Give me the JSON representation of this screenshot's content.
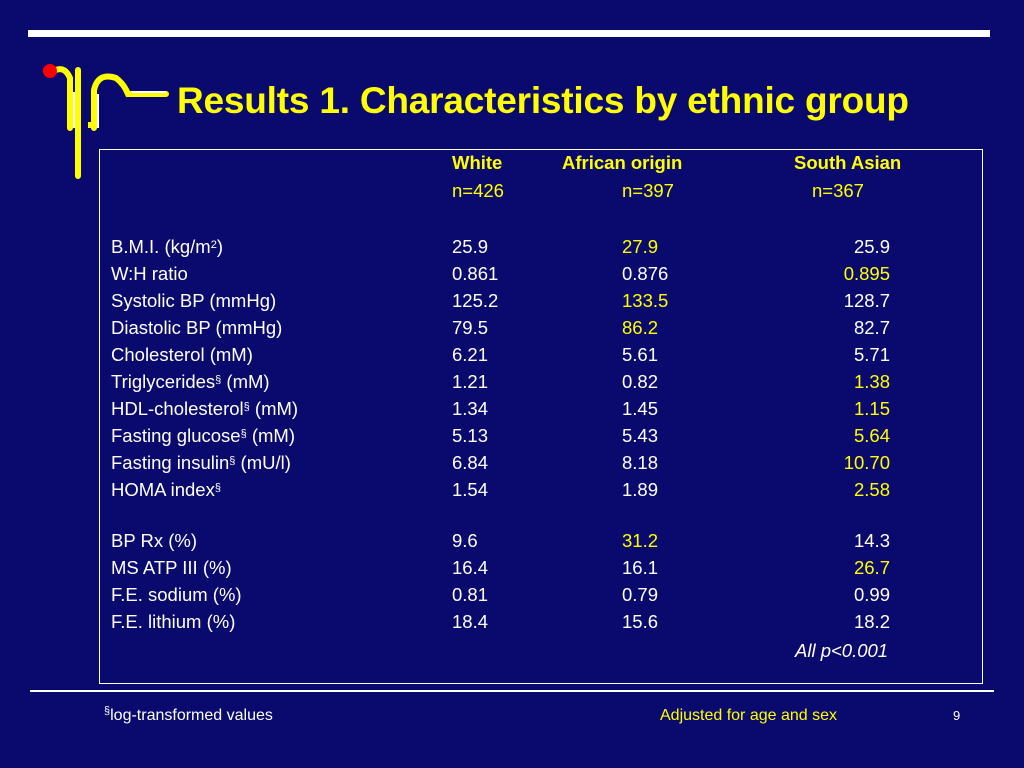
{
  "slide": {
    "title": "Results 1. Characteristics by ethnic group",
    "page_number": "9",
    "colors": {
      "background": "#0a0a6e",
      "accent": "#ffff00",
      "logo_dot": "#ff0000",
      "text": "#ffffff"
    },
    "logo_icon": "pipette-logo-icon"
  },
  "table": {
    "columns": [
      {
        "name": "White",
        "n": "n=426"
      },
      {
        "name": "African origin",
        "n": "n=397"
      },
      {
        "name": "South Asian",
        "n": "n=367"
      }
    ],
    "group1": [
      {
        "label": "B.M.I. (kg/m",
        "sup": "2",
        "label_tail": ")",
        "values": [
          "25.9",
          "27.9",
          "25.9"
        ],
        "highlight": [
          false,
          true,
          false
        ]
      },
      {
        "label": "W:H ratio",
        "sup": "",
        "label_tail": "",
        "values": [
          "0.861",
          "0.876",
          "0.895"
        ],
        "highlight": [
          false,
          false,
          true
        ]
      },
      {
        "label": "Systolic BP (mmHg)",
        "sup": "",
        "label_tail": "",
        "values": [
          "125.2",
          "133.5",
          "128.7"
        ],
        "highlight": [
          false,
          true,
          false
        ]
      },
      {
        "label": "Diastolic BP (mmHg)",
        "sup": "",
        "label_tail": "",
        "values": [
          "79.5",
          "86.2",
          "82.7"
        ],
        "highlight": [
          false,
          true,
          false
        ]
      },
      {
        "label": "Cholesterol (mM)",
        "sup": "",
        "label_tail": "",
        "values": [
          "6.21",
          "5.61",
          "5.71"
        ],
        "highlight": [
          false,
          false,
          false
        ]
      },
      {
        "label": "Triglycerides",
        "sup": "§",
        "label_tail": " (mM)",
        "values": [
          "1.21",
          "0.82",
          "1.38"
        ],
        "highlight": [
          false,
          false,
          true
        ]
      },
      {
        "label": "HDL-cholesterol",
        "sup": "§",
        "label_tail": " (mM)",
        "values": [
          "1.34",
          "1.45",
          "1.15"
        ],
        "highlight": [
          false,
          false,
          true
        ]
      },
      {
        "label": "Fasting glucose",
        "sup": "§",
        "label_tail": " (mM)",
        "values": [
          "5.13",
          "5.43",
          "5.64"
        ],
        "highlight": [
          false,
          false,
          true
        ]
      },
      {
        "label": "Fasting insulin",
        "sup": "§",
        "label_tail": " (mU/l)",
        "values": [
          "6.84",
          "8.18",
          "10.70"
        ],
        "highlight": [
          false,
          false,
          true
        ]
      },
      {
        "label": "HOMA index",
        "sup": "§",
        "label_tail": "",
        "values": [
          "1.54",
          "1.89",
          "2.58"
        ],
        "highlight": [
          false,
          false,
          true
        ]
      }
    ],
    "group2": [
      {
        "label": "BP Rx (%)",
        "sup": "",
        "label_tail": "",
        "values": [
          "9.6",
          "31.2",
          "14.3"
        ],
        "highlight": [
          false,
          true,
          false
        ]
      },
      {
        "label": "MS ATP III (%)",
        "sup": "",
        "label_tail": "",
        "values": [
          "16.4",
          "16.1",
          "26.7"
        ],
        "highlight": [
          false,
          false,
          true
        ]
      },
      {
        "label": "F.E. sodium (%)",
        "sup": "",
        "label_tail": "",
        "values": [
          "0.81",
          "0.79",
          "0.99"
        ],
        "highlight": [
          false,
          false,
          false
        ]
      },
      {
        "label": "F.E. lithium (%)",
        "sup": "",
        "label_tail": "",
        "values": [
          "18.4",
          "15.6",
          "18.2"
        ],
        "highlight": [
          false,
          false,
          false
        ]
      }
    ],
    "note": "All p<0.001"
  },
  "footer": {
    "left_sup": "§",
    "left_text": "log-transformed values",
    "right_text": "Adjusted for age and sex"
  }
}
